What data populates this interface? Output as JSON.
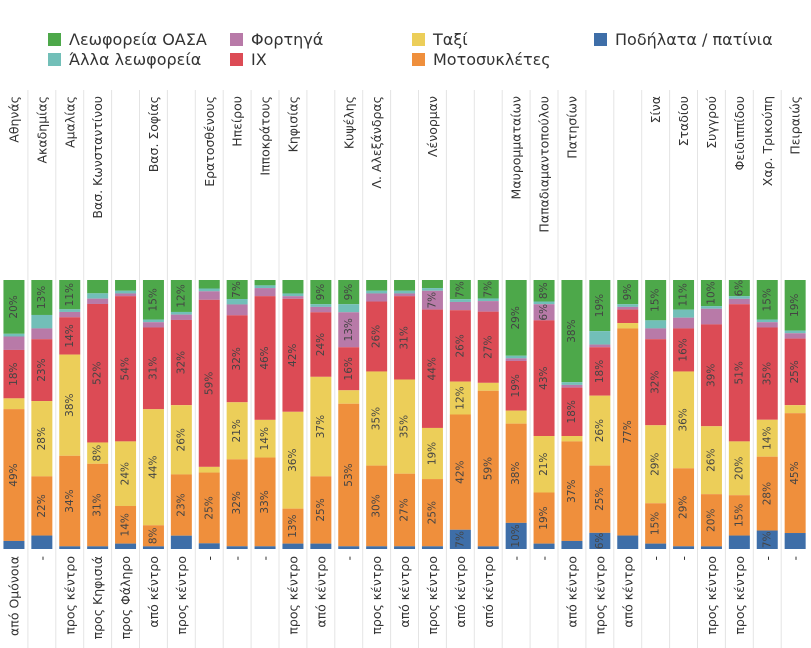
{
  "chart_data": {
    "type": "bar",
    "orientation": "vertical-stacked-100",
    "title": "",
    "series": [
      {
        "name": "Λεωφορεία ΟΑΣΑ",
        "color": "#4da84a"
      },
      {
        "name": "Άλλα λεωφορεία",
        "color": "#72bfb8"
      },
      {
        "name": "Φορτηγά",
        "color": "#b87aa8"
      },
      {
        "name": "ΙΧ",
        "color": "#dc4b55"
      },
      {
        "name": "Ταξί",
        "color": "#ecce59"
      },
      {
        "name": "Μοτοσυκλέτες",
        "color": "#ef8f3c"
      },
      {
        "name": "Ποδήλατα / πατίνια",
        "color": "#3e6ea8"
      }
    ],
    "stack_order_top_to_bottom": [
      "Λεωφορεία ΟΑΣΑ",
      "Άλλα λεωφορεία",
      "Φορτηγά",
      "ΙΧ",
      "Ταξί",
      "Μοτοσυκλέτες",
      "Ποδήλατα / πατίνια"
    ],
    "columns": [
      {
        "street": "Αθηνάς",
        "direction": "από Ομόνοια",
        "values": [
          20,
          1,
          5,
          18,
          4,
          49,
          3
        ]
      },
      {
        "street": "Ακαδημίας",
        "direction": "-",
        "values": [
          13,
          5,
          4,
          23,
          28,
          22,
          5
        ]
      },
      {
        "street": "Αμαλίας",
        "direction": "προς κέντρο",
        "values": [
          11,
          1,
          2,
          14,
          38,
          34,
          1
        ]
      },
      {
        "street": "Βασ. Κωνσταντίνου",
        "direction": "προς Κηφισιά",
        "values": [
          5,
          2,
          2,
          52,
          8,
          31,
          1
        ]
      },
      {
        "street": "",
        "direction": "προς Φάληρο",
        "values": [
          4,
          1,
          1,
          54,
          24,
          14,
          2
        ]
      },
      {
        "street": "Βασ. Σοφίας",
        "direction": "από κέντρο",
        "values": [
          15,
          1,
          2,
          31,
          44,
          8,
          1
        ]
      },
      {
        "street": "",
        "direction": "προς κέντρο",
        "values": [
          12,
          1,
          2,
          32,
          26,
          23,
          5
        ]
      },
      {
        "street": "Ερατοσθένους",
        "direction": "-",
        "values": [
          3,
          1,
          3,
          59,
          2,
          25,
          2
        ]
      },
      {
        "street": "Ηπείρου",
        "direction": "-",
        "values": [
          7,
          2,
          4,
          32,
          21,
          32,
          1
        ]
      },
      {
        "street": "Ιπποκράτους",
        "direction": "-",
        "values": [
          2,
          1,
          3,
          46,
          14,
          33,
          1
        ]
      },
      {
        "street": "Κηφισίας",
        "direction": "προς κέντρο",
        "values": [
          5,
          1,
          1,
          42,
          36,
          13,
          2
        ]
      },
      {
        "street": "",
        "direction": "από κέντρο",
        "values": [
          9,
          1,
          2,
          24,
          37,
          25,
          2
        ]
      },
      {
        "street": "Κυψέλης",
        "direction": "-",
        "values": [
          9,
          3,
          13,
          16,
          5,
          53,
          1
        ]
      },
      {
        "street": "Λ. Αλεξάνδρας",
        "direction": "προς κέντρο",
        "values": [
          4,
          1,
          3,
          26,
          35,
          30,
          1
        ]
      },
      {
        "street": "",
        "direction": "από κέντρο",
        "values": [
          4,
          1,
          1,
          31,
          35,
          27,
          1
        ]
      },
      {
        "street": "Λένορμαν",
        "direction": "προς κέντρο",
        "values": [
          3,
          1,
          7,
          44,
          19,
          25,
          1
        ]
      },
      {
        "street": "",
        "direction": "από κέντρο",
        "values": [
          7,
          1,
          3,
          26,
          12,
          42,
          7
        ]
      },
      {
        "street": "",
        "direction": "από κέντρο",
        "values": [
          7,
          1,
          4,
          27,
          3,
          59,
          1
        ]
      },
      {
        "street": "Μαυρομματαίων",
        "direction": "-",
        "values": [
          29,
          1,
          1,
          19,
          5,
          38,
          10
        ]
      },
      {
        "street": "Παπαδιαμαντοπούλου",
        "direction": "-",
        "values": [
          8,
          1,
          6,
          43,
          21,
          19,
          2
        ]
      },
      {
        "street": "Πατησίων",
        "direction": "από κέντρο",
        "values": [
          38,
          1,
          1,
          18,
          2,
          37,
          3
        ]
      },
      {
        "street": "",
        "direction": "προς κέντρο",
        "values": [
          19,
          5,
          1,
          18,
          26,
          25,
          6
        ]
      },
      {
        "street": "",
        "direction": "από κέντρο",
        "values": [
          9,
          1,
          1,
          5,
          2,
          77,
          5
        ]
      },
      {
        "street": "Σίνα",
        "direction": "-",
        "values": [
          15,
          3,
          4,
          32,
          29,
          15,
          2
        ]
      },
      {
        "street": "Σταδίου",
        "direction": "-",
        "values": [
          11,
          3,
          4,
          16,
          36,
          29,
          1
        ]
      },
      {
        "street": "Συγγρού",
        "direction": "προς κέντρο",
        "values": [
          10,
          1,
          6,
          39,
          26,
          20,
          1
        ]
      },
      {
        "street": "Φειδιππίδου",
        "direction": "προς κέντρο",
        "values": [
          6,
          1,
          2,
          51,
          20,
          15,
          5
        ]
      },
      {
        "street": "Χαρ. Τρικούπη",
        "direction": "-",
        "values": [
          15,
          1,
          2,
          35,
          14,
          28,
          7
        ]
      },
      {
        "street": "Πειραιώς",
        "direction": "-",
        "values": [
          19,
          1,
          2,
          25,
          3,
          45,
          6
        ]
      }
    ],
    "value_unit": "%",
    "min_label_value": 6
  }
}
